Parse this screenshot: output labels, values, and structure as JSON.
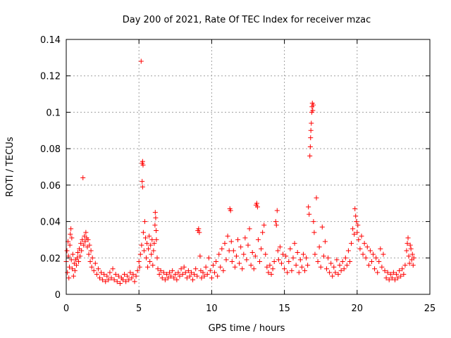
{
  "chart_data": {
    "type": "scatter",
    "title": "Day 200 of 2021, Rate Of TEC Index for receiver mzac",
    "xlabel": "GPS time / hours",
    "ylabel": "ROTI / TECUs",
    "xlim": [
      0,
      25
    ],
    "ylim": [
      0,
      0.14
    ],
    "xticks": [
      0,
      5,
      10,
      15,
      20,
      25
    ],
    "xtick_labels": [
      "0",
      "5",
      "10",
      "15",
      "20",
      "25"
    ],
    "yticks": [
      0,
      0.02,
      0.04,
      0.06,
      0.08,
      0.1,
      0.12,
      0.14
    ],
    "ytick_labels": [
      "0",
      "0.02",
      "0.04",
      "0.06",
      "0.08",
      "0.1",
      "0.12",
      "0.14"
    ],
    "grid": true,
    "marker": "+",
    "color": "#ff0000",
    "series": [
      {
        "name": "ROTI",
        "points": [
          [
            0.0,
            0.018
          ],
          [
            0.05,
            0.024
          ],
          [
            0.08,
            0.012
          ],
          [
            0.12,
            0.029
          ],
          [
            0.15,
            0.021
          ],
          [
            0.18,
            0.009
          ],
          [
            0.22,
            0.015
          ],
          [
            0.25,
            0.027
          ],
          [
            0.28,
            0.033
          ],
          [
            0.32,
            0.036
          ],
          [
            0.35,
            0.019
          ],
          [
            0.38,
            0.031
          ],
          [
            0.42,
            0.014
          ],
          [
            0.45,
            0.022
          ],
          [
            0.5,
            0.01
          ],
          [
            0.55,
            0.017
          ],
          [
            0.6,
            0.013
          ],
          [
            0.65,
            0.019
          ],
          [
            0.7,
            0.016
          ],
          [
            0.75,
            0.02
          ],
          [
            0.8,
            0.023
          ],
          [
            0.85,
            0.018
          ],
          [
            0.9,
            0.025
          ],
          [
            0.95,
            0.021
          ],
          [
            1.0,
            0.028
          ],
          [
            1.05,
            0.024
          ],
          [
            1.1,
            0.03
          ],
          [
            1.15,
            0.064
          ],
          [
            1.2,
            0.027
          ],
          [
            1.25,
            0.032
          ],
          [
            1.3,
            0.029
          ],
          [
            1.35,
            0.034
          ],
          [
            1.4,
            0.031
          ],
          [
            1.45,
            0.026
          ],
          [
            1.5,
            0.03
          ],
          [
            1.55,
            0.022
          ],
          [
            1.6,
            0.027
          ],
          [
            1.65,
            0.018
          ],
          [
            1.7,
            0.024
          ],
          [
            1.75,
            0.015
          ],
          [
            1.8,
            0.02
          ],
          [
            1.9,
            0.013
          ],
          [
            2.0,
            0.017
          ],
          [
            2.1,
            0.011
          ],
          [
            2.2,
            0.014
          ],
          [
            2.3,
            0.009
          ],
          [
            2.4,
            0.012
          ],
          [
            2.5,
            0.008
          ],
          [
            2.6,
            0.011
          ],
          [
            2.7,
            0.007
          ],
          [
            2.8,
            0.01
          ],
          [
            2.9,
            0.008
          ],
          [
            3.0,
            0.012
          ],
          [
            3.1,
            0.009
          ],
          [
            3.2,
            0.014
          ],
          [
            3.3,
            0.008
          ],
          [
            3.4,
            0.011
          ],
          [
            3.5,
            0.007
          ],
          [
            3.6,
            0.01
          ],
          [
            3.7,
            0.006
          ],
          [
            3.8,
            0.009
          ],
          [
            3.9,
            0.008
          ],
          [
            4.0,
            0.011
          ],
          [
            4.1,
            0.007
          ],
          [
            4.2,
            0.01
          ],
          [
            4.3,
            0.008
          ],
          [
            4.4,
            0.012
          ],
          [
            4.5,
            0.009
          ],
          [
            4.6,
            0.011
          ],
          [
            4.7,
            0.007
          ],
          [
            4.8,
            0.01
          ],
          [
            4.9,
            0.013
          ],
          [
            5.0,
            0.018
          ],
          [
            5.05,
            0.015
          ],
          [
            5.1,
            0.022
          ],
          [
            5.15,
            0.128
          ],
          [
            5.18,
            0.027
          ],
          [
            5.22,
            0.072
          ],
          [
            5.25,
            0.073
          ],
          [
            5.28,
            0.071
          ],
          [
            5.22,
            0.062
          ],
          [
            5.25,
            0.059
          ],
          [
            5.3,
            0.034
          ],
          [
            5.35,
            0.024
          ],
          [
            5.4,
            0.04
          ],
          [
            5.45,
            0.031
          ],
          [
            5.5,
            0.02
          ],
          [
            5.55,
            0.028
          ],
          [
            5.6,
            0.015
          ],
          [
            5.65,
            0.025
          ],
          [
            5.7,
            0.032
          ],
          [
            5.75,
            0.018
          ],
          [
            5.8,
            0.027
          ],
          [
            5.85,
            0.022
          ],
          [
            5.9,
            0.03
          ],
          [
            5.95,
            0.016
          ],
          [
            6.0,
            0.024
          ],
          [
            6.05,
            0.028
          ],
          [
            6.1,
            0.038
          ],
          [
            6.12,
            0.045
          ],
          [
            6.15,
            0.042
          ],
          [
            6.18,
            0.035
          ],
          [
            6.2,
            0.03
          ],
          [
            6.25,
            0.02
          ],
          [
            6.3,
            0.014
          ],
          [
            6.4,
            0.011
          ],
          [
            6.5,
            0.013
          ],
          [
            6.6,
            0.009
          ],
          [
            6.7,
            0.012
          ],
          [
            6.8,
            0.008
          ],
          [
            6.9,
            0.011
          ],
          [
            7.0,
            0.009
          ],
          [
            7.1,
            0.012
          ],
          [
            7.2,
            0.01
          ],
          [
            7.3,
            0.013
          ],
          [
            7.4,
            0.009
          ],
          [
            7.5,
            0.011
          ],
          [
            7.6,
            0.008
          ],
          [
            7.7,
            0.012
          ],
          [
            7.8,
            0.01
          ],
          [
            7.9,
            0.014
          ],
          [
            8.0,
            0.011
          ],
          [
            8.1,
            0.015
          ],
          [
            8.2,
            0.012
          ],
          [
            8.3,
            0.009
          ],
          [
            8.4,
            0.013
          ],
          [
            8.5,
            0.01
          ],
          [
            8.6,
            0.012
          ],
          [
            8.7,
            0.008
          ],
          [
            8.8,
            0.011
          ],
          [
            8.9,
            0.014
          ],
          [
            9.0,
            0.01
          ],
          [
            9.05,
            0.035
          ],
          [
            9.1,
            0.036
          ],
          [
            9.15,
            0.034
          ],
          [
            9.2,
            0.021
          ],
          [
            9.25,
            0.013
          ],
          [
            9.3,
            0.009
          ],
          [
            9.4,
            0.012
          ],
          [
            9.5,
            0.01
          ],
          [
            9.6,
            0.015
          ],
          [
            9.7,
            0.011
          ],
          [
            9.8,
            0.02
          ],
          [
            9.9,
            0.013
          ],
          [
            10.0,
            0.009
          ],
          [
            10.1,
            0.016
          ],
          [
            10.2,
            0.012
          ],
          [
            10.3,
            0.018
          ],
          [
            10.4,
            0.01
          ],
          [
            10.5,
            0.022
          ],
          [
            10.6,
            0.015
          ],
          [
            10.7,
            0.025
          ],
          [
            10.8,
            0.013
          ],
          [
            10.9,
            0.028
          ],
          [
            11.0,
            0.019
          ],
          [
            11.1,
            0.032
          ],
          [
            11.2,
            0.024
          ],
          [
            11.25,
            0.047
          ],
          [
            11.3,
            0.046
          ],
          [
            11.35,
            0.029
          ],
          [
            11.4,
            0.018
          ],
          [
            11.5,
            0.024
          ],
          [
            11.6,
            0.015
          ],
          [
            11.7,
            0.021
          ],
          [
            11.8,
            0.03
          ],
          [
            11.9,
            0.017
          ],
          [
            12.0,
            0.026
          ],
          [
            12.1,
            0.014
          ],
          [
            12.2,
            0.022
          ],
          [
            12.3,
            0.031
          ],
          [
            12.4,
            0.019
          ],
          [
            12.5,
            0.027
          ],
          [
            12.6,
            0.036
          ],
          [
            12.7,
            0.016
          ],
          [
            12.8,
            0.023
          ],
          [
            12.9,
            0.014
          ],
          [
            13.0,
            0.021
          ],
          [
            13.05,
            0.049
          ],
          [
            13.1,
            0.05
          ],
          [
            13.15,
            0.048
          ],
          [
            13.2,
            0.03
          ],
          [
            13.3,
            0.018
          ],
          [
            13.4,
            0.025
          ],
          [
            13.5,
            0.034
          ],
          [
            13.6,
            0.038
          ],
          [
            13.7,
            0.022
          ],
          [
            13.8,
            0.015
          ],
          [
            13.9,
            0.012
          ],
          [
            14.0,
            0.016
          ],
          [
            14.1,
            0.011
          ],
          [
            14.2,
            0.014
          ],
          [
            14.3,
            0.018
          ],
          [
            14.4,
            0.04
          ],
          [
            14.45,
            0.038
          ],
          [
            14.5,
            0.046
          ],
          [
            14.55,
            0.024
          ],
          [
            14.6,
            0.019
          ],
          [
            14.7,
            0.026
          ],
          [
            14.8,
            0.017
          ],
          [
            14.9,
            0.022
          ],
          [
            15.0,
            0.014
          ],
          [
            15.1,
            0.021
          ],
          [
            15.2,
            0.012
          ],
          [
            15.3,
            0.018
          ],
          [
            15.4,
            0.025
          ],
          [
            15.5,
            0.013
          ],
          [
            15.6,
            0.02
          ],
          [
            15.7,
            0.028
          ],
          [
            15.8,
            0.016
          ],
          [
            15.9,
            0.023
          ],
          [
            16.0,
            0.012
          ],
          [
            16.1,
            0.019
          ],
          [
            16.2,
            0.015
          ],
          [
            16.3,
            0.022
          ],
          [
            16.4,
            0.013
          ],
          [
            16.5,
            0.02
          ],
          [
            16.6,
            0.016
          ],
          [
            16.65,
            0.048
          ],
          [
            16.7,
            0.044
          ],
          [
            16.75,
            0.076
          ],
          [
            16.78,
            0.081
          ],
          [
            16.8,
            0.086
          ],
          [
            16.82,
            0.09
          ],
          [
            16.85,
            0.094
          ],
          [
            16.88,
            0.1
          ],
          [
            16.9,
            0.103
          ],
          [
            16.92,
            0.105
          ],
          [
            16.95,
            0.101
          ],
          [
            16.98,
            0.104
          ],
          [
            17.0,
            0.04
          ],
          [
            17.05,
            0.034
          ],
          [
            17.1,
            0.022
          ],
          [
            17.2,
            0.053
          ],
          [
            17.3,
            0.018
          ],
          [
            17.4,
            0.026
          ],
          [
            17.5,
            0.015
          ],
          [
            17.6,
            0.037
          ],
          [
            17.7,
            0.021
          ],
          [
            17.8,
            0.029
          ],
          [
            17.9,
            0.014
          ],
          [
            18.0,
            0.02
          ],
          [
            18.1,
            0.012
          ],
          [
            18.2,
            0.017
          ],
          [
            18.3,
            0.01
          ],
          [
            18.4,
            0.015
          ],
          [
            18.5,
            0.012
          ],
          [
            18.6,
            0.019
          ],
          [
            18.7,
            0.011
          ],
          [
            18.8,
            0.016
          ],
          [
            18.9,
            0.013
          ],
          [
            19.0,
            0.018
          ],
          [
            19.1,
            0.014
          ],
          [
            19.2,
            0.02
          ],
          [
            19.3,
            0.016
          ],
          [
            19.4,
            0.024
          ],
          [
            19.5,
            0.018
          ],
          [
            19.6,
            0.028
          ],
          [
            19.7,
            0.036
          ],
          [
            19.8,
            0.033
          ],
          [
            19.85,
            0.047
          ],
          [
            19.9,
            0.043
          ],
          [
            19.95,
            0.04
          ],
          [
            20.0,
            0.034
          ],
          [
            20.05,
            0.038
          ],
          [
            20.1,
            0.03
          ],
          [
            20.2,
            0.025
          ],
          [
            20.3,
            0.032
          ],
          [
            20.4,
            0.022
          ],
          [
            20.5,
            0.028
          ],
          [
            20.6,
            0.02
          ],
          [
            20.7,
            0.026
          ],
          [
            20.8,
            0.016
          ],
          [
            20.9,
            0.024
          ],
          [
            21.0,
            0.018
          ],
          [
            21.1,
            0.022
          ],
          [
            21.2,
            0.014
          ],
          [
            21.3,
            0.02
          ],
          [
            21.4,
            0.012
          ],
          [
            21.5,
            0.018
          ],
          [
            21.6,
            0.025
          ],
          [
            21.7,
            0.015
          ],
          [
            21.8,
            0.022
          ],
          [
            21.9,
            0.013
          ],
          [
            22.0,
            0.009
          ],
          [
            22.1,
            0.012
          ],
          [
            22.2,
            0.008
          ],
          [
            22.3,
            0.011
          ],
          [
            22.4,
            0.009
          ],
          [
            22.5,
            0.012
          ],
          [
            22.6,
            0.008
          ],
          [
            22.7,
            0.011
          ],
          [
            22.8,
            0.009
          ],
          [
            22.9,
            0.013
          ],
          [
            23.0,
            0.01
          ],
          [
            23.1,
            0.014
          ],
          [
            23.2,
            0.011
          ],
          [
            23.3,
            0.016
          ],
          [
            23.4,
            0.024
          ],
          [
            23.45,
            0.028
          ],
          [
            23.5,
            0.031
          ],
          [
            23.55,
            0.021
          ],
          [
            23.6,
            0.017
          ],
          [
            23.65,
            0.027
          ],
          [
            23.7,
            0.025
          ],
          [
            23.75,
            0.019
          ],
          [
            23.8,
            0.022
          ],
          [
            23.85,
            0.016
          ],
          [
            23.9,
            0.02
          ]
        ]
      }
    ]
  }
}
